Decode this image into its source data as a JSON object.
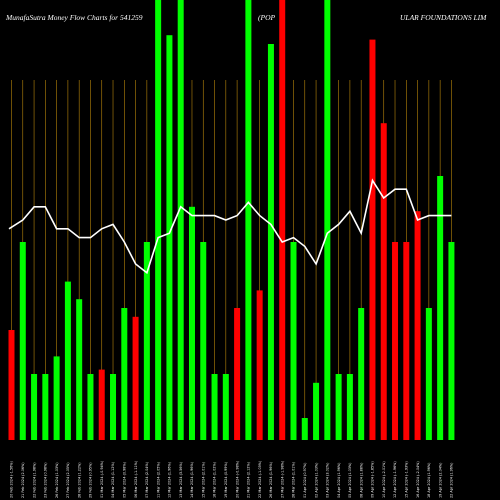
{
  "chart_data": {
    "type": "bar",
    "title_left": "MunafaSutra  Money Flow  Charts for 541259",
    "title_mid": "(POP",
    "title_right": "ULAR FOUNDATIONS LIM",
    "ylim": [
      0,
      100
    ],
    "colors": {
      "up": "#00ff00",
      "down": "#ff0000",
      "line": "#ffffff",
      "grid": "#b8860b",
      "background": "#000000"
    },
    "categories": [
      "20 Feb 2024 (-1.56%)",
      "21 Feb 2024 (2.06%)",
      "22 Feb 2024 (1.98%)",
      "23 Feb 2024 (0.98%)",
      "26 Feb 2024 (1.03%)",
      "27 Feb 2024 (2.05%)",
      "28 Feb 2024 (1.22%)",
      "29 Feb 2024 (0.95%)",
      "01 Mar 2024 (-0.94%)",
      "04 Mar 2024 (1.12%)",
      "05 Mar 2024 (0.98%)",
      "06 Mar 2024 (-1.11%)",
      "07 Mar 2024 (2.04%)",
      "11 Mar 2024 (2.05%)",
      "12 Mar 2024 (1.96%)",
      "13 Mar 2024 (3.56%)",
      "14 Mar 2024 (1.96%)",
      "15 Mar 2024 (2.01%)",
      "18 Mar 2024 (1.02%)",
      "19 Mar 2024 (0.99%)",
      "20 Mar 2024 (-0.98%)",
      "21 Mar 2024 (2.12%)",
      "22 Mar 2024 (-1.03%)",
      "26 Mar 2024 (1.96%)",
      "27 Mar 2024 (-1.98%)",
      "28 Mar 2024 (1.01%)",
      "01 Apr 2024 (0.97%)",
      "02 Apr 2024 (1.03%)",
      "03 Apr 2024 (3.02%)",
      "04 Apr 2024 (1.96%)",
      "05 Apr 2024 (1.03%)",
      "08 Apr 2024 (1.88%)",
      "09 Apr 2024 (-1.85%)",
      "10 Apr 2024 (-2.01%)",
      "12 Apr 2024 (-1.96%)",
      "15 Apr 2024 (-1.93%)",
      "16 Apr 2024 (-2.04%)",
      "18 Apr 2024 (1.96%)",
      "19 Apr 2024 (2.04%)",
      "22 Apr 2024 (1.96%)"
    ],
    "values": [
      25,
      45,
      15,
      15,
      19,
      36,
      32,
      15,
      16,
      15,
      30,
      28,
      45,
      100,
      92,
      100,
      53,
      45,
      15,
      15,
      30,
      100,
      34,
      90,
      100,
      45,
      5,
      13,
      100,
      15,
      15,
      30,
      91,
      72,
      45,
      45,
      52,
      30,
      60,
      45
    ],
    "bar_colors": [
      "red",
      "green",
      "green",
      "green",
      "green",
      "green",
      "green",
      "green",
      "red",
      "green",
      "green",
      "red",
      "green",
      "green",
      "green",
      "green",
      "green",
      "green",
      "green",
      "green",
      "red",
      "green",
      "red",
      "green",
      "red",
      "green",
      "green",
      "green",
      "green",
      "green",
      "green",
      "green",
      "red",
      "red",
      "red",
      "red",
      "red",
      "green",
      "green",
      "green"
    ],
    "line_values": [
      48,
      50,
      53,
      53,
      48,
      48,
      46,
      46,
      48,
      49,
      45,
      40,
      38,
      46,
      47,
      53,
      51,
      51,
      51,
      50,
      51,
      54,
      51,
      49,
      45,
      46,
      44,
      40,
      47,
      49,
      52,
      47,
      59,
      55,
      57,
      57,
      50,
      51,
      51,
      51
    ]
  }
}
